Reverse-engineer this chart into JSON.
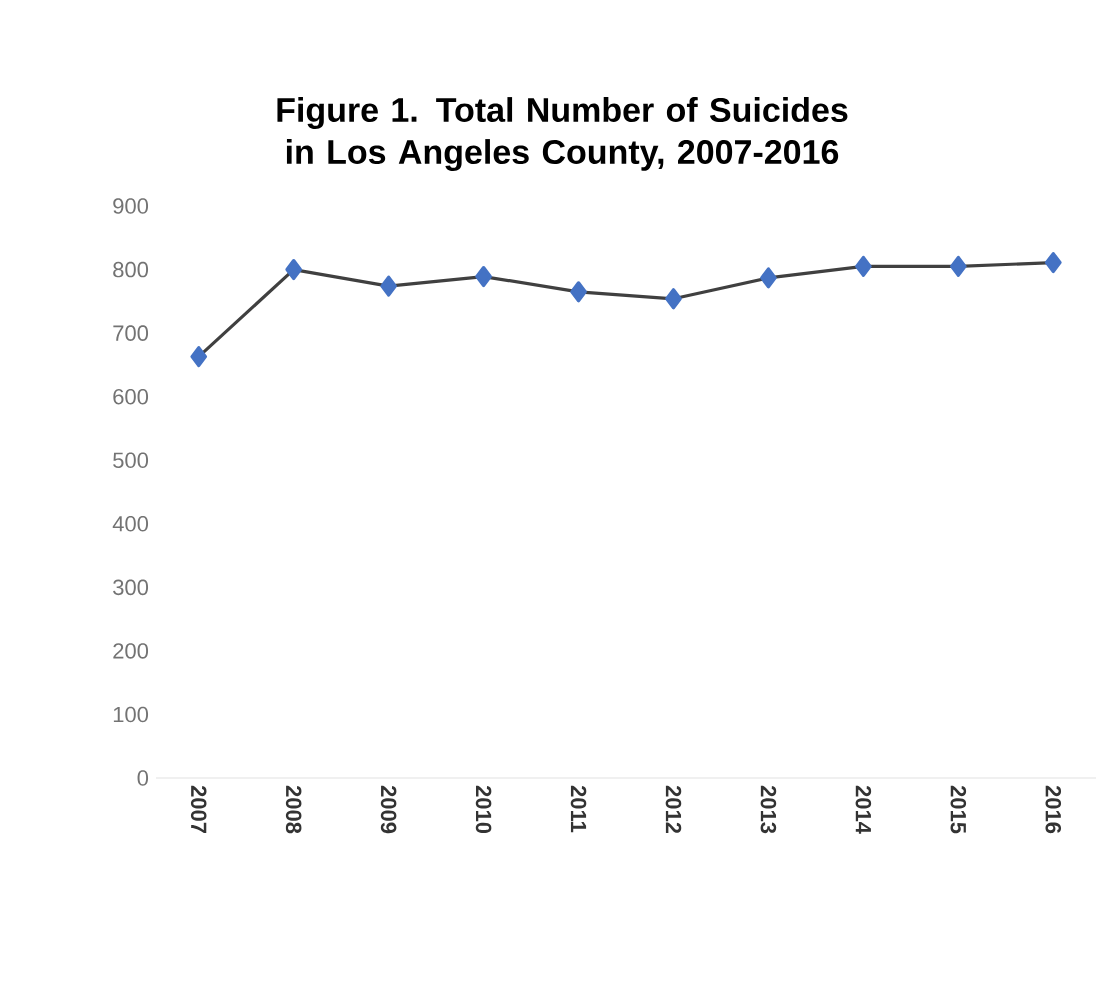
{
  "chart_data": {
    "type": "line",
    "title": "Figure 1. Total Number of Suicides in Los Angeles County, 2007-2016",
    "categories": [
      "2007",
      "2008",
      "2009",
      "2010",
      "2011",
      "2012",
      "2013",
      "2014",
      "2015",
      "2016"
    ],
    "series": [
      {
        "color": "#4472c4",
        "values": [
          663,
          800,
          774,
          789,
          765,
          754,
          787,
          805,
          805,
          811
        ]
      }
    ],
    "ylim": [
      0,
      900
    ],
    "yticks": [
      0,
      100,
      200,
      300,
      400,
      500,
      600,
      700,
      800,
      900
    ],
    "grid": false,
    "marker": "diamond",
    "line_style": "solid"
  }
}
